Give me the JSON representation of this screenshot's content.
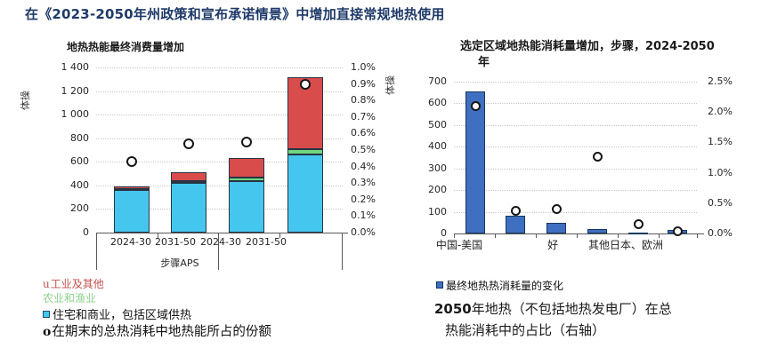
{
  "page_title": "在《2023-2050年州政策和宣布承诺情景》中增加直接常规地热使用",
  "colors": {
    "title_navy": "#1f3a68",
    "bar_cyan": "#45c6ee",
    "bar_green": "#6fd680",
    "bar_red": "#d94c4c",
    "bar_royal_blue": "#3f6fc1",
    "bar_outline_navy": "#17375e",
    "legend_red_text": "#c0504d",
    "legend_green_text": "#8ed08e"
  },
  "chart_data": [
    {
      "type": "bar",
      "stacked": true,
      "title": "地热热能最终消费量增加",
      "ylabel": "体操",
      "ylim": [
        0,
        1400
      ],
      "ytick_step": 200,
      "ytick_labels": [
        "0",
        "200",
        "400",
        "600",
        "800",
        "1 000",
        "1 200",
        "1 400"
      ],
      "y2lim_pct": [
        0.0,
        1.0
      ],
      "y2_labels": [
        "0.0%",
        "0.1%",
        "0.2%",
        "0.3%",
        "0.4%",
        "0.5%",
        "0.6%",
        "0.7%",
        "0.8%",
        "0.9%",
        "1.0%"
      ],
      "grid": true,
      "categories": [
        "2024-30",
        "2031-50",
        "2024-30",
        "2031-50"
      ],
      "group_label": "步骤APS",
      "series": [
        {
          "name": "住宅和商业，包括区域供热",
          "color": "#45c6ee",
          "values": [
            360,
            420,
            440,
            660
          ]
        },
        {
          "name": "农业和渔业",
          "color": "#6fd680",
          "values": [
            12,
            20,
            25,
            45
          ]
        },
        {
          "name": "工业及其他",
          "color": "#d94c4c",
          "values": [
            20,
            75,
            165,
            615
          ]
        }
      ],
      "markers": {
        "name": "在期末的总热消耗中地热能所占的份额",
        "axis": "right",
        "values_pct": [
          0.43,
          0.54,
          0.55,
          0.9
        ]
      }
    },
    {
      "type": "bar",
      "stacked": false,
      "title_pre": "选定区域地热能消耗量增加，步骤，",
      "title_bold": "2024-2050",
      "title_post": "年",
      "ylabel": "体操",
      "ylim": [
        0,
        700
      ],
      "ytick_step": 100,
      "ytick_labels": [
        "0",
        "100",
        "200",
        "300",
        "400",
        "500",
        "600",
        "700"
      ],
      "y2lim_pct": [
        0.0,
        2.5
      ],
      "y2_labels": [
        "0.0%",
        "0.5%",
        "1.0%",
        "1.5%",
        "2.0%",
        "2.5%"
      ],
      "grid": true,
      "series": [
        {
          "name": "最终地热热消耗量的变化",
          "color": "#3f6fc1",
          "values": [
            655,
            82,
            50,
            20,
            6,
            18
          ]
        }
      ],
      "markers": {
        "name": "2050年地热（不包括地热发电厂）在总热能消耗中的占比（右轴）",
        "axis": "right",
        "values_pct": [
          2.1,
          0.38,
          0.4,
          1.27,
          0.15,
          0.04
        ]
      },
      "x_labels": [
        {
          "text": "中国-美国",
          "pos": 0.022
        },
        {
          "text": "好",
          "pos": 0.407
        },
        {
          "text": "其他日本、欧洲",
          "pos": 0.707
        }
      ]
    }
  ],
  "legend_left": {
    "items": [
      {
        "marker": "u",
        "label": "工业及其他",
        "color": "#c0504d"
      },
      {
        "marker": "",
        "label": "农业和渔业",
        "color": "#8ed08e"
      },
      {
        "marker": "square",
        "label": "住宅和商业，包括区域供热",
        "color": "#45c6ee"
      },
      {
        "marker": "o",
        "label": "在期末的总热消耗中地热能所占的份额",
        "color": "#111111"
      }
    ]
  },
  "legend_right": {
    "item_marker": "square",
    "item_label": "最终地热热消耗量的变化",
    "caption_bold": "2050",
    "caption_line1_rest": "年地热（不包括地热发电厂）在总",
    "caption_line2": "热能消耗中的占比（右轴）"
  }
}
